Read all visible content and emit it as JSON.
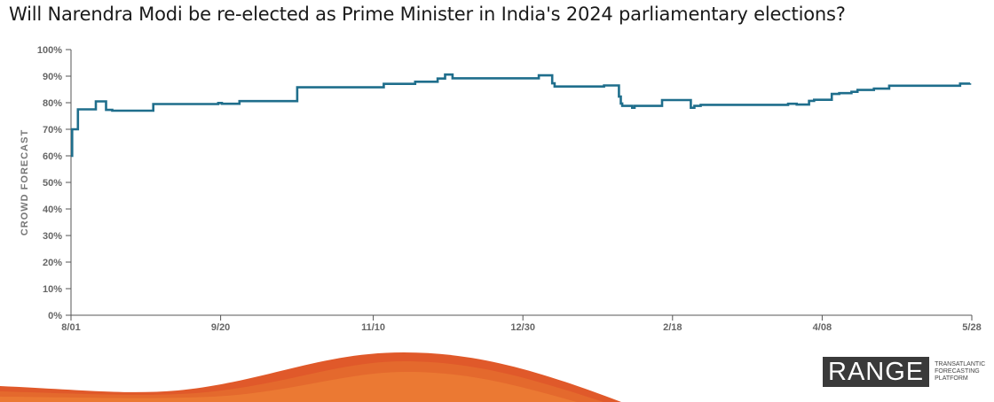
{
  "title": "Will Narendra Modi be re-elected as Prime Minister in India's 2024 parliamentary elections?",
  "chart_data": {
    "type": "line",
    "ylabel": "CROWD FORECAST",
    "xlabel": "",
    "ylim": [
      0,
      100
    ],
    "y_ticks": [
      "0%",
      "10%",
      "20%",
      "30%",
      "40%",
      "50%",
      "60%",
      "70%",
      "80%",
      "90%",
      "100%"
    ],
    "x_tick_labels": [
      "8/01",
      "9/20",
      "11/10",
      "12/30",
      "2/18",
      "4/08",
      "5/28"
    ],
    "x_tick_days": [
      0,
      50,
      101,
      151,
      201,
      251,
      301
    ],
    "series": [
      {
        "color": "#1f6e8c",
        "step": true,
        "points": [
          [
            0,
            60
          ],
          [
            0.4,
            70
          ],
          [
            2.3,
            77.5
          ],
          [
            8.3,
            80.5
          ],
          [
            11.7,
            77.3
          ],
          [
            13.8,
            77
          ],
          [
            27.5,
            79.5
          ],
          [
            49.2,
            79.9
          ],
          [
            50.4,
            79.6
          ],
          [
            56.3,
            80.6
          ],
          [
            75.6,
            85.8
          ],
          [
            104.5,
            87.1
          ],
          [
            115,
            87.9
          ],
          [
            122.5,
            89.1
          ],
          [
            125,
            90.6
          ],
          [
            127.5,
            89.2
          ],
          [
            156.3,
            90.3
          ],
          [
            160.8,
            87.3
          ],
          [
            161.6,
            86.1
          ],
          [
            178.1,
            86.5
          ],
          [
            183.1,
            82.3
          ],
          [
            183.7,
            79.7
          ],
          [
            184.2,
            78.8
          ],
          [
            187.5,
            78.1
          ],
          [
            188.3,
            78.8
          ],
          [
            197.5,
            81
          ],
          [
            207.1,
            78.1
          ],
          [
            208.3,
            78.8
          ],
          [
            210.4,
            79.2
          ],
          [
            239.6,
            79.6
          ],
          [
            242.5,
            79.3
          ],
          [
            246.6,
            80.7
          ],
          [
            248.3,
            81.1
          ],
          [
            254.2,
            83.3
          ],
          [
            256.7,
            83.6
          ],
          [
            260.8,
            84.1
          ],
          [
            262.8,
            84.8
          ],
          [
            268.3,
            85.3
          ],
          [
            273.4,
            86.4
          ],
          [
            297.1,
            87.2
          ],
          [
            300.4,
            87.3
          ]
        ]
      }
    ]
  },
  "logo": {
    "wordmark": "RANGE",
    "tagline": [
      "TRANSATLANTIC",
      "FORECASTING",
      "PLATFORM"
    ]
  }
}
